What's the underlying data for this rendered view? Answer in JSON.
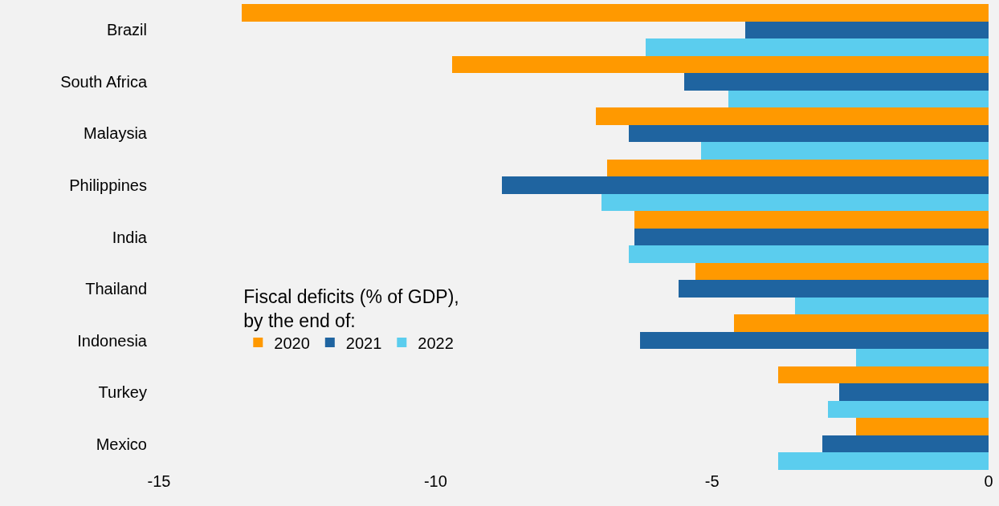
{
  "chart_data": {
    "type": "bar",
    "orientation": "horizontal",
    "categories": [
      "Brazil",
      "South Africa",
      "Malaysia",
      "Philippines",
      "India",
      "Thailand",
      "Indonesia",
      "Turkey",
      "Mexico"
    ],
    "series": [
      {
        "name": "2020",
        "color": "#ff9900",
        "values": [
          -13.5,
          -9.7,
          -7.1,
          -6.9,
          -6.4,
          -5.3,
          -4.6,
          -3.8,
          -2.4
        ]
      },
      {
        "name": "2021",
        "color": "#1f64a0",
        "values": [
          -4.4,
          -5.5,
          -6.5,
          -8.8,
          -6.4,
          -5.6,
          -6.3,
          -2.7,
          -3.0
        ]
      },
      {
        "name": "2022",
        "color": "#5bcdee",
        "values": [
          -6.2,
          -4.7,
          -5.2,
          -7.0,
          -6.5,
          -3.5,
          -2.4,
          -2.9,
          -3.8
        ]
      }
    ],
    "xlim": [
      -15,
      0
    ],
    "xticks": [
      -15,
      -10,
      -5,
      0
    ],
    "legend_title": "Fiscal deficits (% of GDP),\nby the end of:",
    "legend": "bottom left",
    "grid": false
  }
}
